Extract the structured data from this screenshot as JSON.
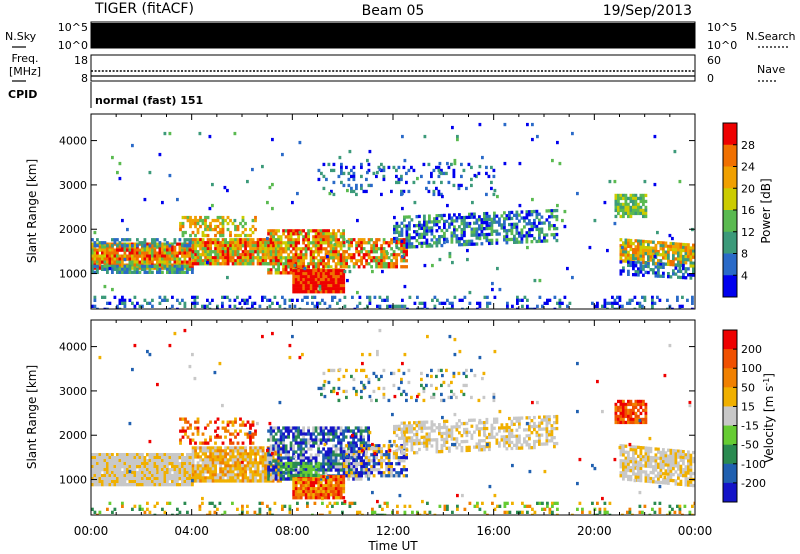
{
  "header": {
    "radar": "TIGER (fitACF)",
    "beam": "Beam 05",
    "date": "19/Sep/2013"
  },
  "top_panels": {
    "nsky_label": "N.Sky",
    "nsky_tick_top": "10^5",
    "nsky_tick_bottom": "10^0",
    "nsearch_tick_top": "10^5",
    "nsearch_tick_bottom": "10^0",
    "nsearch_label": "N.Search",
    "freq_label_1": "Freq.",
    "freq_label_2": "[MHz]",
    "freq_tick_top": "18",
    "freq_tick_bottom": "8",
    "nave_tick_top": "60",
    "nave_tick_bottom": "0",
    "nave_label": "Nave",
    "cpid_label": "CPID",
    "cpid_value": "normal (fast) 151"
  },
  "chart_data": [
    {
      "type": "heatmap",
      "title": "Power",
      "ylabel": "Slant Range [km]",
      "ylim": [
        200,
        4600
      ],
      "xlim": [
        0,
        24
      ],
      "y_ticks": [
        "1000",
        "2000",
        "3000",
        "4000"
      ],
      "colorbar_label": "Power [dB]",
      "colorbar_ticks": [
        "4",
        "8",
        "12",
        "16",
        "20",
        "24",
        "28"
      ],
      "colorbar_colors": [
        "#0000ee",
        "#2a6ac8",
        "#3c9a7a",
        "#5aba50",
        "#cccc00",
        "#f0a000",
        "#f07000",
        "#ee0000"
      ],
      "legend": "right"
    },
    {
      "type": "heatmap",
      "title": "Velocity",
      "ylabel": "Slant Range [km]",
      "ylim": [
        200,
        4600
      ],
      "xlim": [
        0,
        24
      ],
      "y_ticks": [
        "1000",
        "2000",
        "3000",
        "4000"
      ],
      "colorbar_label": "Velocity [m s-1]",
      "colorbar_ticks": [
        "200",
        "100",
        "50",
        "15",
        "-15",
        "-50",
        "-100",
        "-200"
      ],
      "colorbar_colors": [
        "#1414c8",
        "#2060b0",
        "#2a8a50",
        "#66cc33",
        "#c8c8c8",
        "#f0b000",
        "#f08000",
        "#f05000",
        "#ee0000"
      ],
      "legend": "right"
    }
  ],
  "x_axis": {
    "ticks": [
      "00:00",
      "04:00",
      "08:00",
      "12:00",
      "16:00",
      "20:00",
      "00:00"
    ],
    "label": "Time UT"
  }
}
